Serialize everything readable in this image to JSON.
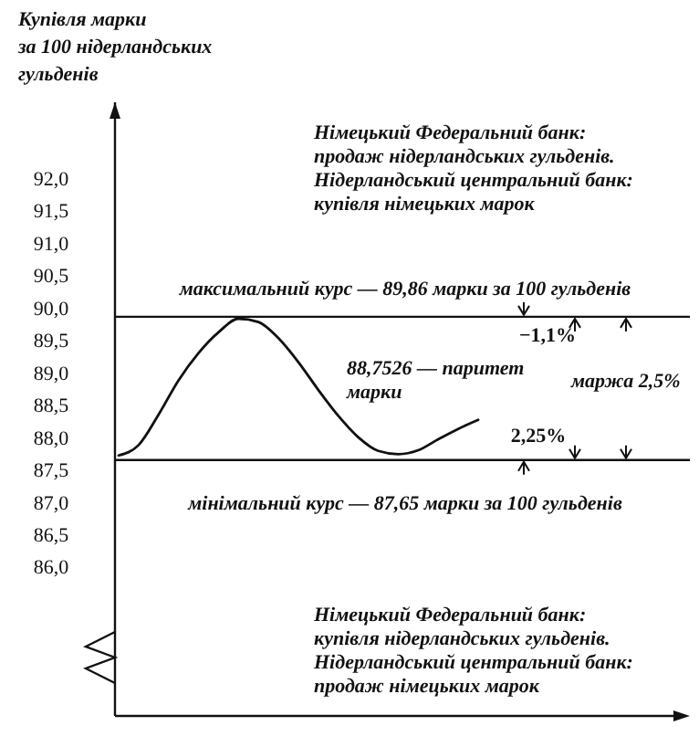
{
  "chart_data": {
    "type": "line",
    "ylabel": "Купівля марки\nза 100 нідерландських\nгульденів",
    "categories": [
      null,
      null,
      null,
      null,
      null,
      null,
      null,
      null,
      null,
      null,
      null,
      null,
      null,
      null,
      null,
      null,
      null,
      null,
      null
    ],
    "series": [
      {
        "color": "#111111",
        "values": [
          87.72,
          87.88,
          88.35,
          88.88,
          89.3,
          89.62,
          89.83,
          89.78,
          89.53,
          89.16,
          88.73,
          88.33,
          88.0,
          87.79,
          87.74,
          87.8,
          87.97,
          88.13,
          88.27
        ]
      }
    ],
    "ylim": [
      83.7,
      93.17
    ],
    "yticks": [
      {
        "value": 86,
        "label": "86,0"
      },
      {
        "value": 86.5,
        "label": "86,5"
      },
      {
        "value": 87,
        "label": "87,0"
      },
      {
        "value": 87.5,
        "label": "87,5"
      },
      {
        "value": 88,
        "label": "88,0"
      },
      {
        "value": 88.5,
        "label": "88,5"
      },
      {
        "value": 89,
        "label": "89,0"
      },
      {
        "value": 89.5,
        "label": "89,5"
      },
      {
        "value": 90,
        "label": "90,0"
      },
      {
        "value": 90.5,
        "label": "90,5"
      },
      {
        "value": 91,
        "label": "91,0"
      },
      {
        "value": 91.5,
        "label": "91,5"
      },
      {
        "value": 92,
        "label": "92,0"
      }
    ],
    "ref_lines": [
      {
        "axis": "y",
        "value": 89.86,
        "label": "максимальний курс — 89,86 марки за 100 гульденів",
        "color": "#111111"
      },
      {
        "axis": "y",
        "value": 87.65,
        "label": "мінімальний курс — 87,65 марки за 100 гульденів",
        "color": "#111111"
      }
    ],
    "annotations": [
      "Німецький Федеральний банк:\nпродаж нідерландських гульденів.\nНідерландський центральний банк:\nкупівля німецьких марок",
      "−1,1%",
      "88,7526 — паритет\nмарки",
      "маржа 2,5%",
      "2,25%",
      "Німецький Федеральний банк:\nкупівля нідерландських гульденів.\nНідерландський центральний банк:\nпродаж німецьких марок"
    ],
    "grid": false,
    "marker": "none",
    "line_style": "solid"
  }
}
